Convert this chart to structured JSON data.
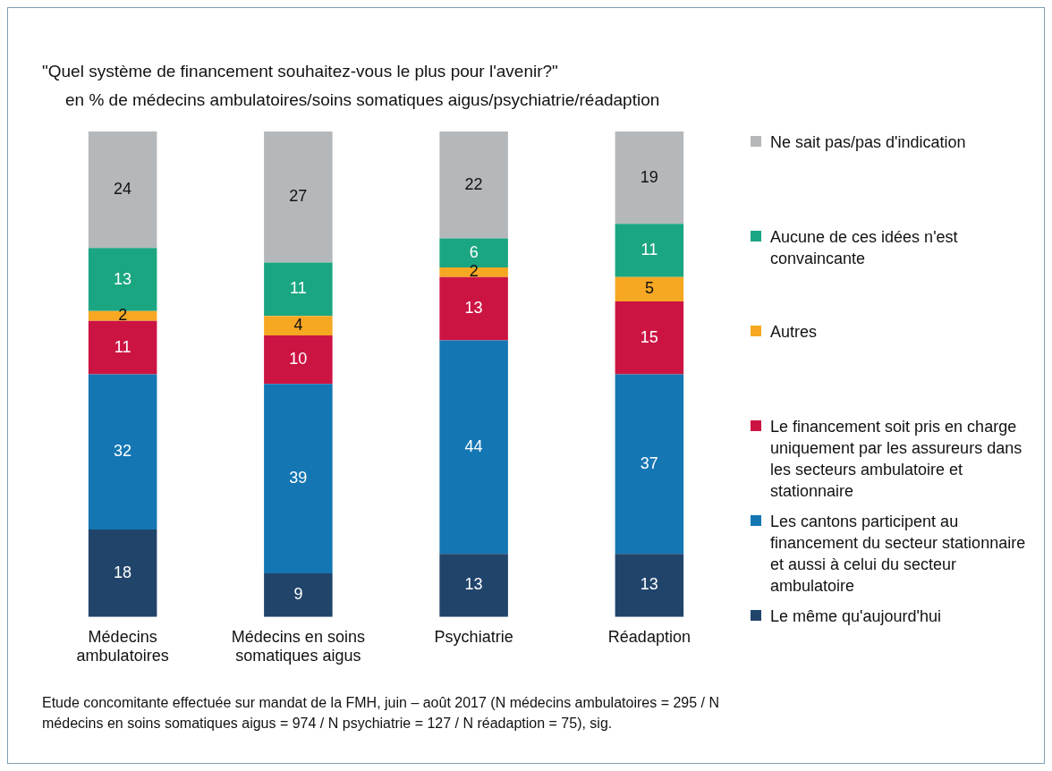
{
  "chart_data": {
    "type": "bar",
    "title": "\"Quel système de financement souhaitez-vous le plus pour l'avenir?\"",
    "subtitle": "en % de médecins ambulatoires/soins somatiques aigus/psychiatrie/réadaption",
    "categories": [
      "Médecins ambulatoires",
      "Médecins en soins somatiques aigus",
      "Psychiatrie",
      "Réadaption"
    ],
    "stacked": true,
    "data_labels": true,
    "legend": "right",
    "grid": false,
    "series": [
      {
        "name": "Le même qu'aujourd'hui",
        "color": "#21446b",
        "values": [
          18,
          9,
          13,
          13
        ]
      },
      {
        "name": "Les cantons participent au financement du secteur stationnaire et aussi à celui du secteur ambulatoire",
        "color": "#1476b3",
        "values": [
          32,
          39,
          44,
          37
        ]
      },
      {
        "name": "Le financement soit pris en charge uniquement par les assureurs dans les secteurs ambulatoire et stationnaire",
        "color": "#cc1443",
        "values": [
          11,
          10,
          13,
          15
        ]
      },
      {
        "name": "Autres",
        "color": "#f7a823",
        "values": [
          2,
          4,
          2,
          5
        ]
      },
      {
        "name": "Aucune de ces idées n'est convaincante",
        "color": "#1ba682",
        "values": [
          13,
          11,
          6,
          11
        ]
      },
      {
        "name": "Ne sait pas/pas d'indication",
        "color": "#b5b8ba",
        "values": [
          24,
          27,
          22,
          19
        ]
      }
    ],
    "annotations": [
      "Etude concomitante effectuée sur mandat de la FMH, juin – août 2017 (N médecins ambulatoires = 295 / N médecins en soins somatiques aigus = 974 / N psychiatrie = 127 / N réadaption = 75), sig."
    ]
  }
}
